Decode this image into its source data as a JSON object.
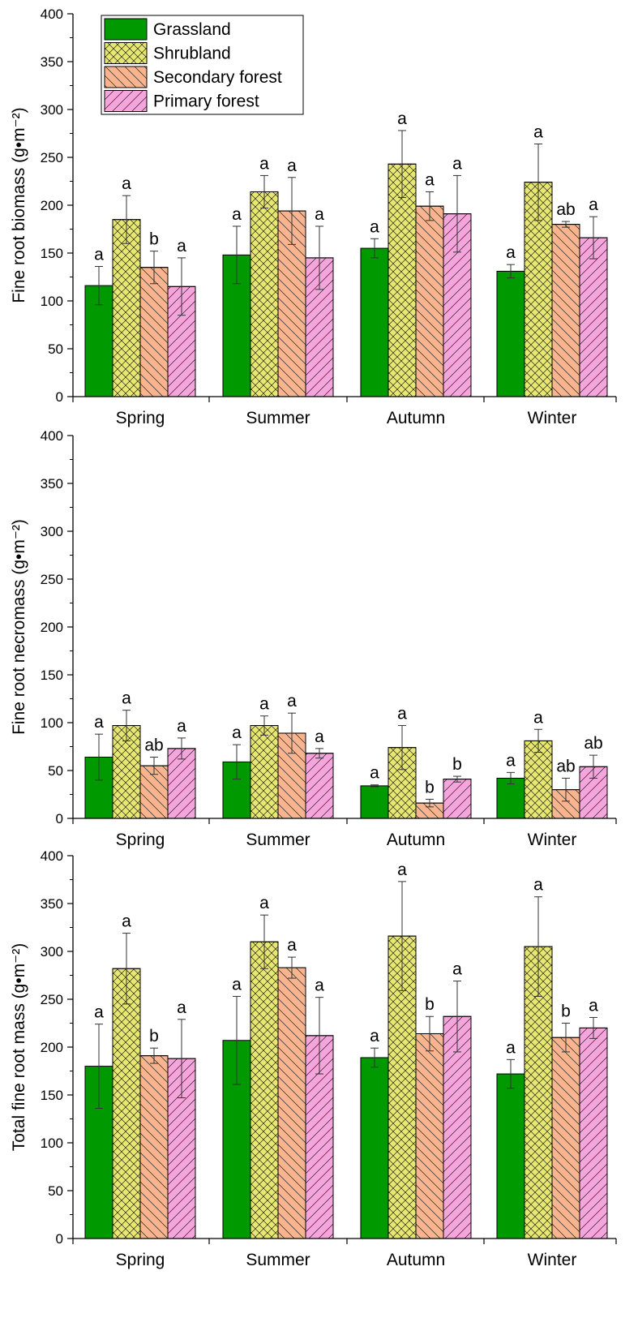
{
  "series_meta": [
    {
      "name": "Grassland",
      "color": "#009900",
      "pattern": "solid"
    },
    {
      "name": "Shrubland",
      "color": "#e6e673",
      "pattern": "crosshatch"
    },
    {
      "name": "Secondary forest",
      "color": "#f7b48e",
      "pattern": "backslash"
    },
    {
      "name": "Primary forest",
      "color": "#f4a6dc",
      "pattern": "slash"
    }
  ],
  "legend_position": "top-left of first panel",
  "chart_data": [
    {
      "type": "bar",
      "ylabel": "Fine root biomass (g•m⁻²)",
      "ylim": [
        0,
        400
      ],
      "yticks": [
        0,
        50,
        100,
        150,
        200,
        250,
        300,
        350,
        400
      ],
      "categories": [
        "Spring",
        "Summer",
        "Autumn",
        "Winter"
      ],
      "grid": false,
      "show_legend": true,
      "series": [
        {
          "name": "Grassland",
          "values": [
            116,
            148,
            155,
            131
          ],
          "errors": [
            20,
            30,
            10,
            7
          ],
          "labels": [
            "a",
            "a",
            "a",
            "a"
          ]
        },
        {
          "name": "Shrubland",
          "values": [
            185,
            214,
            243,
            224
          ],
          "errors": [
            25,
            17,
            35,
            40
          ],
          "labels": [
            "a",
            "a",
            "a",
            "a"
          ]
        },
        {
          "name": "Secondary forest",
          "values": [
            135,
            194,
            199,
            180
          ],
          "errors": [
            17,
            35,
            15,
            3
          ],
          "labels": [
            "b",
            "a",
            "a",
            "ab"
          ]
        },
        {
          "name": "Primary forest",
          "values": [
            115,
            145,
            191,
            166
          ],
          "errors": [
            30,
            33,
            40,
            22
          ],
          "labels": [
            "a",
            "a",
            "a",
            "a"
          ]
        }
      ]
    },
    {
      "type": "bar",
      "ylabel": "Fine root necromass (g•m⁻²)",
      "ylim": [
        0,
        400
      ],
      "yticks": [
        0,
        50,
        100,
        150,
        200,
        250,
        300,
        350,
        400
      ],
      "categories": [
        "Spring",
        "Summer",
        "Autumn",
        "Winter"
      ],
      "grid": false,
      "show_legend": false,
      "series": [
        {
          "name": "Grassland",
          "values": [
            64,
            59,
            34,
            42
          ],
          "errors": [
            24,
            18,
            1,
            6
          ],
          "labels": [
            "a",
            "a",
            "a",
            "a"
          ]
        },
        {
          "name": "Shrubland",
          "values": [
            97,
            97,
            74,
            81
          ],
          "errors": [
            16,
            10,
            23,
            12
          ],
          "labels": [
            "a",
            "a",
            "a",
            "a"
          ]
        },
        {
          "name": "Secondary forest",
          "values": [
            55,
            89,
            16,
            30
          ],
          "errors": [
            9,
            21,
            4,
            12
          ],
          "labels": [
            "ab",
            "a",
            "b",
            "ab"
          ]
        },
        {
          "name": "Primary forest",
          "values": [
            73,
            68,
            41,
            54
          ],
          "errors": [
            11,
            5,
            3,
            12
          ],
          "labels": [
            "a",
            "a",
            "b",
            "ab"
          ]
        }
      ]
    },
    {
      "type": "bar",
      "ylabel": "Total fine root mass (g•m⁻²)",
      "ylim": [
        0,
        400
      ],
      "yticks": [
        0,
        50,
        100,
        150,
        200,
        250,
        300,
        350,
        400
      ],
      "categories": [
        "Spring",
        "Summer",
        "Autumn",
        "Winter"
      ],
      "grid": false,
      "show_legend": false,
      "series": [
        {
          "name": "Grassland",
          "values": [
            180,
            207,
            189,
            172
          ],
          "errors": [
            44,
            46,
            10,
            15
          ],
          "labels": [
            "a",
            "a",
            "a",
            "a"
          ]
        },
        {
          "name": "Shrubland",
          "values": [
            282,
            310,
            316,
            305
          ],
          "errors": [
            37,
            28,
            57,
            52
          ],
          "labels": [
            "a",
            "a",
            "a",
            "a"
          ]
        },
        {
          "name": "Secondary forest",
          "values": [
            191,
            283,
            214,
            210
          ],
          "errors": [
            8,
            11,
            18,
            15
          ],
          "labels": [
            "b",
            "a",
            "b",
            "b"
          ]
        },
        {
          "name": "Primary forest",
          "values": [
            188,
            212,
            232,
            220
          ],
          "errors": [
            41,
            40,
            37,
            11
          ],
          "labels": [
            "a",
            "a",
            "a",
            "a"
          ]
        }
      ]
    }
  ]
}
